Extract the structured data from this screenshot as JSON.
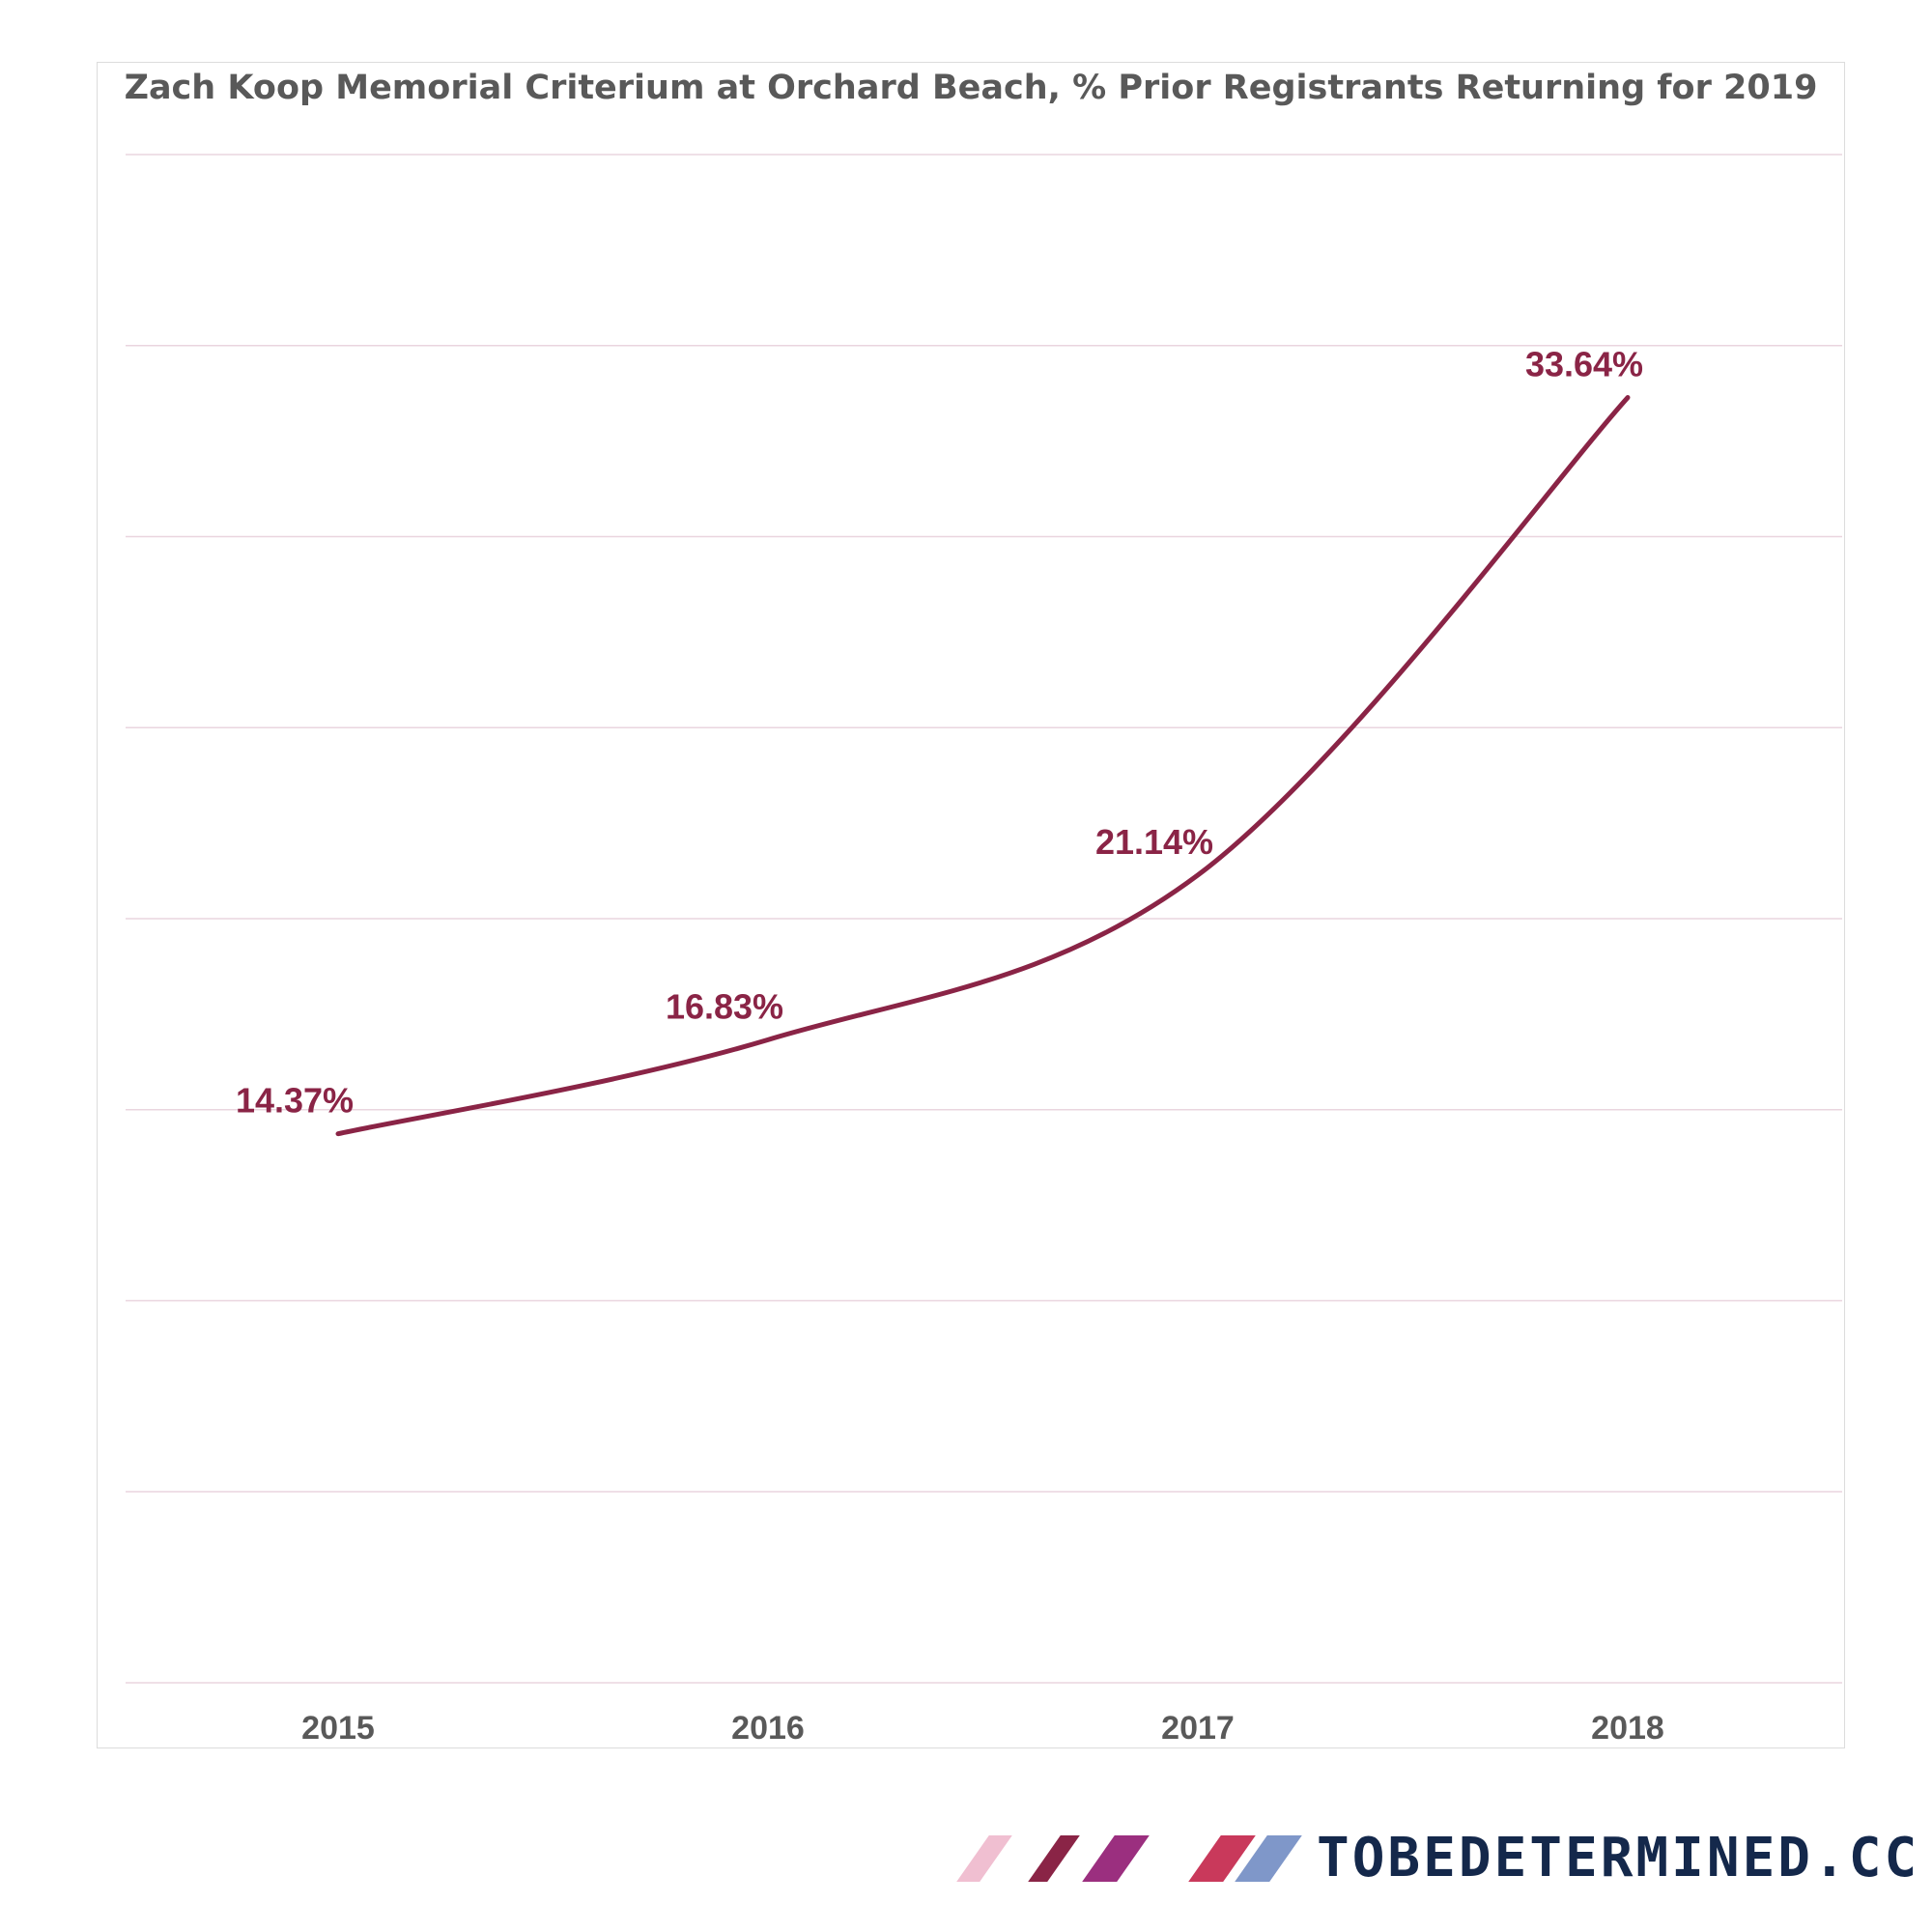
{
  "chart_data": {
    "type": "line",
    "title": "Zach Koop Memorial Criterium at Orchard Beach, % Prior Registrants Returning for 2019",
    "categories": [
      "2015",
      "2016",
      "2017",
      "2018"
    ],
    "series": [
      {
        "name": "% Prior Registrants Returning",
        "values": [
          14.37,
          16.83,
          21.14,
          33.64
        ],
        "labels": [
          "14.37%",
          "16.83%",
          "21.14%",
          "33.64%"
        ],
        "color": "#8a2446"
      }
    ],
    "xlabel": "",
    "ylabel": "",
    "ylim": [
      0,
      40
    ],
    "ytick_step": 5,
    "show_y_tick_labels": false,
    "grid": true,
    "smooth": true
  },
  "brand": {
    "text": "TOBEDETERMINED.CC",
    "text_color": "#14284b",
    "stripe_colors": [
      "#f0bfd1",
      "#8a2446",
      "#9b2f7f",
      "#c9395b",
      "#7f97c9"
    ]
  },
  "colors": {
    "grid": "#ead5df",
    "frame": "#dcdcdc",
    "text": "#595959"
  }
}
